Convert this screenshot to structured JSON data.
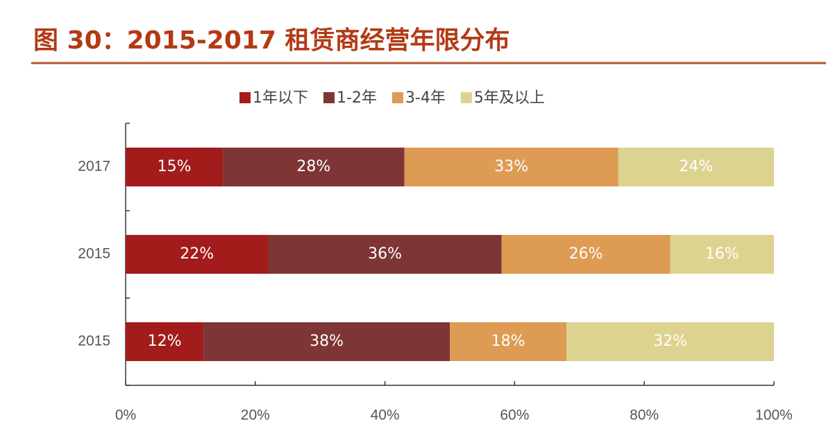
{
  "chart_data": {
    "type": "stacked-bar-horizontal",
    "title": "图 30：2015-2017 租赁商经营年限分布",
    "categories": [
      "2017",
      "2015",
      "2015"
    ],
    "series": [
      {
        "name": "1年以下",
        "color": "#a31c1c",
        "values": [
          15,
          22,
          12
        ],
        "value_labels": [
          "15%",
          "22%",
          "12%"
        ]
      },
      {
        "name": "1-2年",
        "color": "#7e3535",
        "values": [
          28,
          36,
          38
        ],
        "value_labels": [
          "28%",
          "36%",
          "38%"
        ]
      },
      {
        "name": "3-4年",
        "color": "#de9b53",
        "values": [
          33,
          26,
          18
        ],
        "value_labels": [
          "33%",
          "26%",
          "18%"
        ]
      },
      {
        "name": "5年及以上",
        "color": "#ddd390",
        "values": [
          24,
          16,
          32
        ],
        "value_labels": [
          "24%",
          "16%",
          "32%"
        ]
      }
    ],
    "xlim": [
      0,
      100
    ],
    "xticks": [
      {
        "value": 0,
        "label": "0%"
      },
      {
        "value": 20,
        "label": "20%"
      },
      {
        "value": 40,
        "label": "40%"
      },
      {
        "value": 60,
        "label": "60%"
      },
      {
        "value": 80,
        "label": "80%"
      },
      {
        "value": 100,
        "label": "100%"
      }
    ],
    "legend": "top"
  }
}
